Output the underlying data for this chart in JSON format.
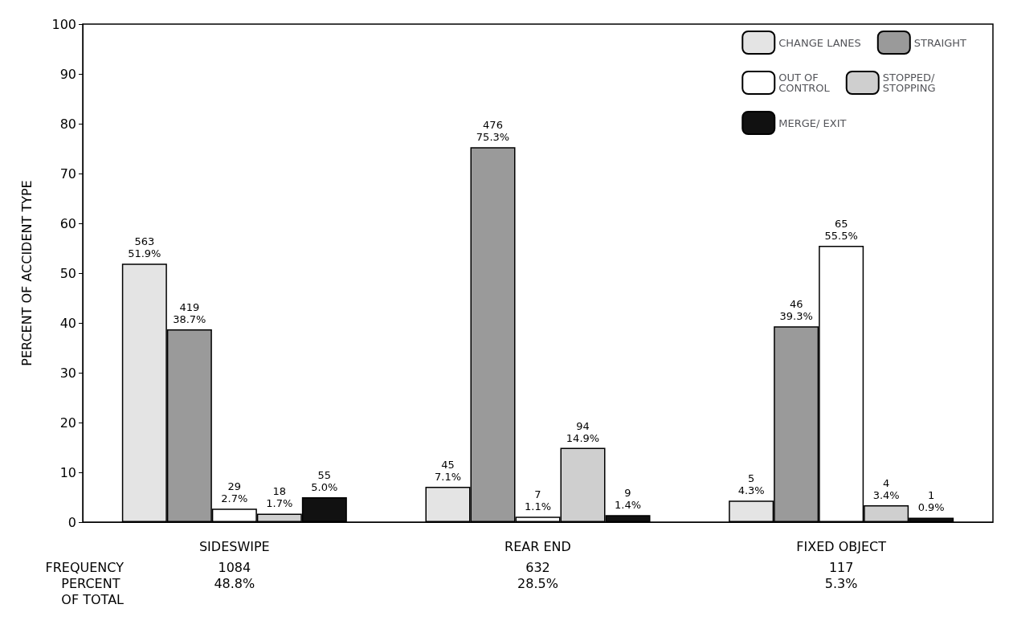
{
  "chart_data": {
    "type": "bar",
    "ylabel": "PERCENT OF ACCIDENT TYPE",
    "categories": [
      "SIDESWIPE",
      "REAR END",
      "FIXED OBJECT"
    ],
    "series": [
      {
        "name": "CHANGE LANES",
        "color": "#e4e4e4",
        "values": [
          51.9,
          7.1,
          4.3
        ],
        "value_labels": [
          "563\n51.9%",
          "45\n7.1%",
          "5\n4.3%"
        ]
      },
      {
        "name": "STRAIGHT",
        "color": "#9a9a9a",
        "values": [
          38.7,
          75.3,
          39.3
        ],
        "value_labels": [
          "419\n38.7%",
          "476\n75.3%",
          "46\n39.3%"
        ]
      },
      {
        "name": "OUT OF CONTROL",
        "color": "#ffffff",
        "values": [
          2.7,
          1.1,
          55.5
        ],
        "value_labels": [
          "29\n2.7%",
          "7\n1.1%",
          "65\n55.5%"
        ]
      },
      {
        "name": "STOPPED/ STOPPING",
        "color": "#cfcfcf",
        "values": [
          1.7,
          14.9,
          3.4
        ],
        "value_labels": [
          "18\n1.7%",
          "94\n14.9%",
          "4\n3.4%"
        ]
      },
      {
        "name": "MERGE/ EXIT",
        "color": "#111111",
        "values": [
          5.0,
          1.4,
          0.9
        ],
        "value_labels": [
          "55\n5.0%",
          "9\n1.4%",
          "1\n0.9%"
        ]
      }
    ],
    "ylim": [
      0,
      100
    ],
    "yticks": [
      0,
      10,
      20,
      30,
      40,
      50,
      60,
      70,
      80,
      90,
      100
    ],
    "grid": false,
    "legend": "top right",
    "annotations": [
      "FREQUENCY",
      "PERCENT\nOF TOTAL",
      "1084\n48.8%",
      "632\n28.5%",
      "117\n5.3%"
    ]
  }
}
